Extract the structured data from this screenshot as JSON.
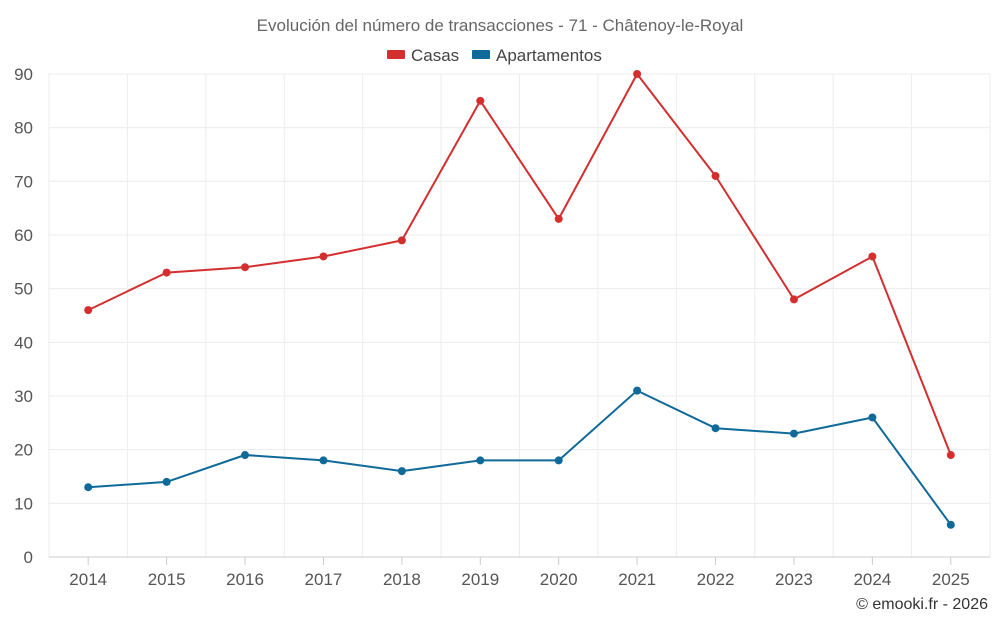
{
  "chart_data": {
    "type": "line",
    "title": "Evolución del número de transacciones - 71 - Châtenoy-le-Royal",
    "categories": [
      "2014",
      "2015",
      "2016",
      "2017",
      "2018",
      "2019",
      "2020",
      "2021",
      "2022",
      "2023",
      "2024",
      "2025"
    ],
    "series": [
      {
        "name": "Casas",
        "color": "#d32f2f",
        "values": [
          46,
          53,
          54,
          56,
          59,
          85,
          63,
          90,
          71,
          48,
          56,
          19
        ]
      },
      {
        "name": "Apartamentos",
        "color": "#0f6a9a",
        "values": [
          13,
          14,
          19,
          18,
          16,
          18,
          18,
          31,
          24,
          23,
          26,
          6
        ]
      }
    ],
    "ylim": [
      0,
      90
    ],
    "yticks": [
      "0",
      "10",
      "20",
      "30",
      "40",
      "50",
      "60",
      "70",
      "80",
      "90"
    ],
    "xlabel": "",
    "ylabel": "",
    "grid": true,
    "legend_position": "top-center"
  },
  "credit": "© emooki.fr - 2026"
}
